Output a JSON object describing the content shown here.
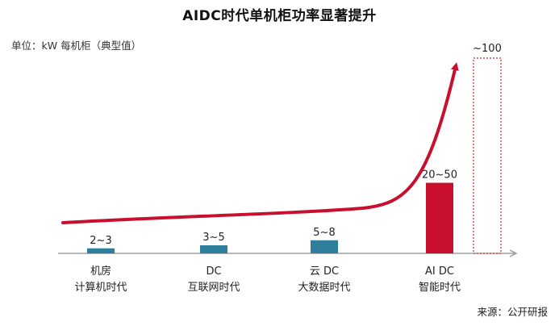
{
  "title": "AIDC时代单机柜功率显著提升",
  "unit_label": "单位：kW 每机柜（典型值）",
  "source": "来源：公开研报",
  "colors": {
    "bar": "#2e7f9c",
    "ai_bar": "#c8102e",
    "trend": "#c8102e",
    "forecast_outline": "#d9534f",
    "axis": "#a0a0a0"
  },
  "chart_data": {
    "type": "bar",
    "categories": [
      {
        "name": "机房",
        "era": "计算机时代"
      },
      {
        "name": "DC",
        "era": "互联网时代"
      },
      {
        "name": "云 DC",
        "era": "大数据时代"
      },
      {
        "name": "AI DC",
        "era": "智能时代"
      }
    ],
    "values": [
      2.5,
      4,
      6.5,
      35
    ],
    "value_labels": [
      "2~3",
      "3~5",
      "5~8",
      "20~50"
    ],
    "forecast": {
      "value": 100,
      "label": "~100",
      "style": "dotted-outline"
    },
    "trend": "exponential-arrow",
    "grid": false,
    "legend": "none"
  }
}
